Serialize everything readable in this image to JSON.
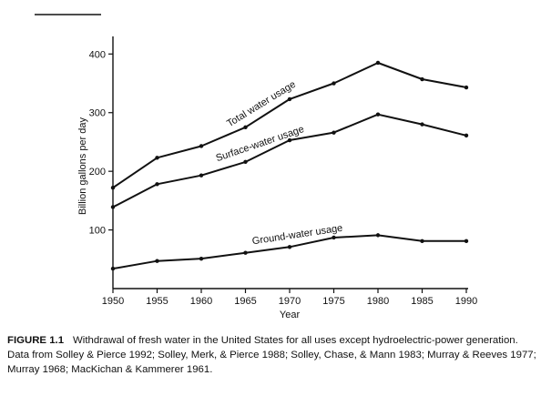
{
  "chart_data": {
    "type": "line",
    "xlabel": "Year",
    "ylabel": "Billion gallons per day",
    "xlim": [
      1950,
      1990
    ],
    "ylim": [
      0,
      430
    ],
    "xticks": [
      1950,
      1955,
      1960,
      1965,
      1970,
      1975,
      1980,
      1985,
      1990
    ],
    "yticks": [
      100,
      200,
      300,
      400
    ],
    "x": [
      1950,
      1955,
      1960,
      1965,
      1970,
      1975,
      1980,
      1985,
      1990
    ],
    "series": [
      {
        "name": "Total water usage",
        "values": [
          172,
          223,
          243,
          275,
          323,
          350,
          385,
          357,
          343
        ]
      },
      {
        "name": "Surface-water usage",
        "values": [
          139,
          178,
          193,
          216,
          253,
          266,
          297,
          280,
          261
        ]
      },
      {
        "name": "Ground-water usage",
        "values": [
          34,
          47,
          51,
          61,
          71,
          87,
          91,
          81,
          81
        ]
      }
    ],
    "grid": false,
    "legend": "none"
  },
  "caption": {
    "label": "FIGURE 1.1",
    "text": "Withdrawal of fresh water in the United States for all uses except hydroelectric-power generation. Data from Solley & Pierce 1992; Solley, Merk, & Pierce 1988; Solley, Chase, & Mann 1983; Murray & Reeves 1977; Murray 1968; MacKichan & Kammerer 1961."
  }
}
